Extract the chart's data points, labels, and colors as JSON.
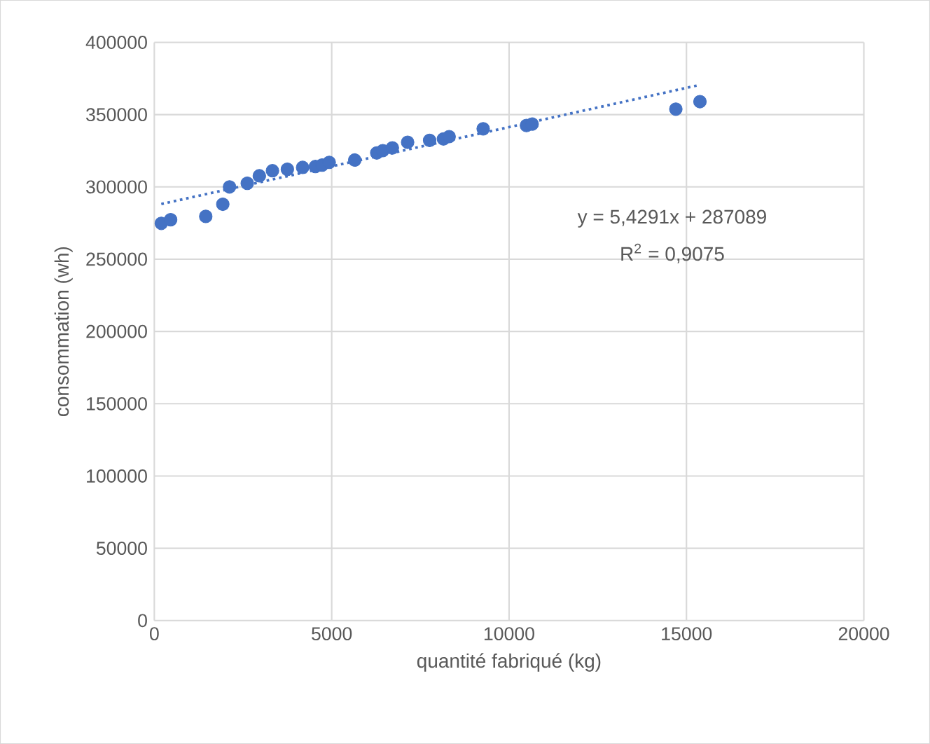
{
  "chart_data": {
    "type": "scatter",
    "xlabel": "quantité fabriqué (kg)",
    "ylabel": "consommation (wh)",
    "xlim": [
      0,
      20000
    ],
    "ylim": [
      0,
      400000
    ],
    "xticks": [
      0,
      5000,
      10000,
      15000,
      20000
    ],
    "yticks": [
      0,
      50000,
      100000,
      150000,
      200000,
      250000,
      300000,
      350000,
      400000
    ],
    "grid": true,
    "marker": "circle",
    "annotations": [
      "y = 5,4291x + 287089",
      "R$^{2}$ = 0,9075"
    ],
    "series": [
      {
        "color": "#4472c4",
        "x": [
          197,
          460,
          1450,
          1930,
          2120,
          2620,
          2960,
          3330,
          3750,
          4180,
          4540,
          4730,
          4930,
          5650,
          6270,
          6440,
          6710,
          7140,
          7760,
          8150,
          8310,
          9270,
          10490,
          10650,
          14700,
          15380
        ],
        "values": [
          274800,
          277300,
          279600,
          288000,
          300000,
          302500,
          307700,
          311200,
          312200,
          313500,
          314100,
          315100,
          317000,
          318600,
          323500,
          325100,
          327000,
          330900,
          332200,
          333200,
          334800,
          340200,
          342500,
          343500,
          353800,
          359000
        ]
      },
      {
        "type": "line",
        "color": "#4472c4",
        "line_style": "dotted",
        "marker": "none",
        "x": [
          197,
          15380
        ],
        "values": [
          288159,
          370587
        ]
      }
    ]
  }
}
